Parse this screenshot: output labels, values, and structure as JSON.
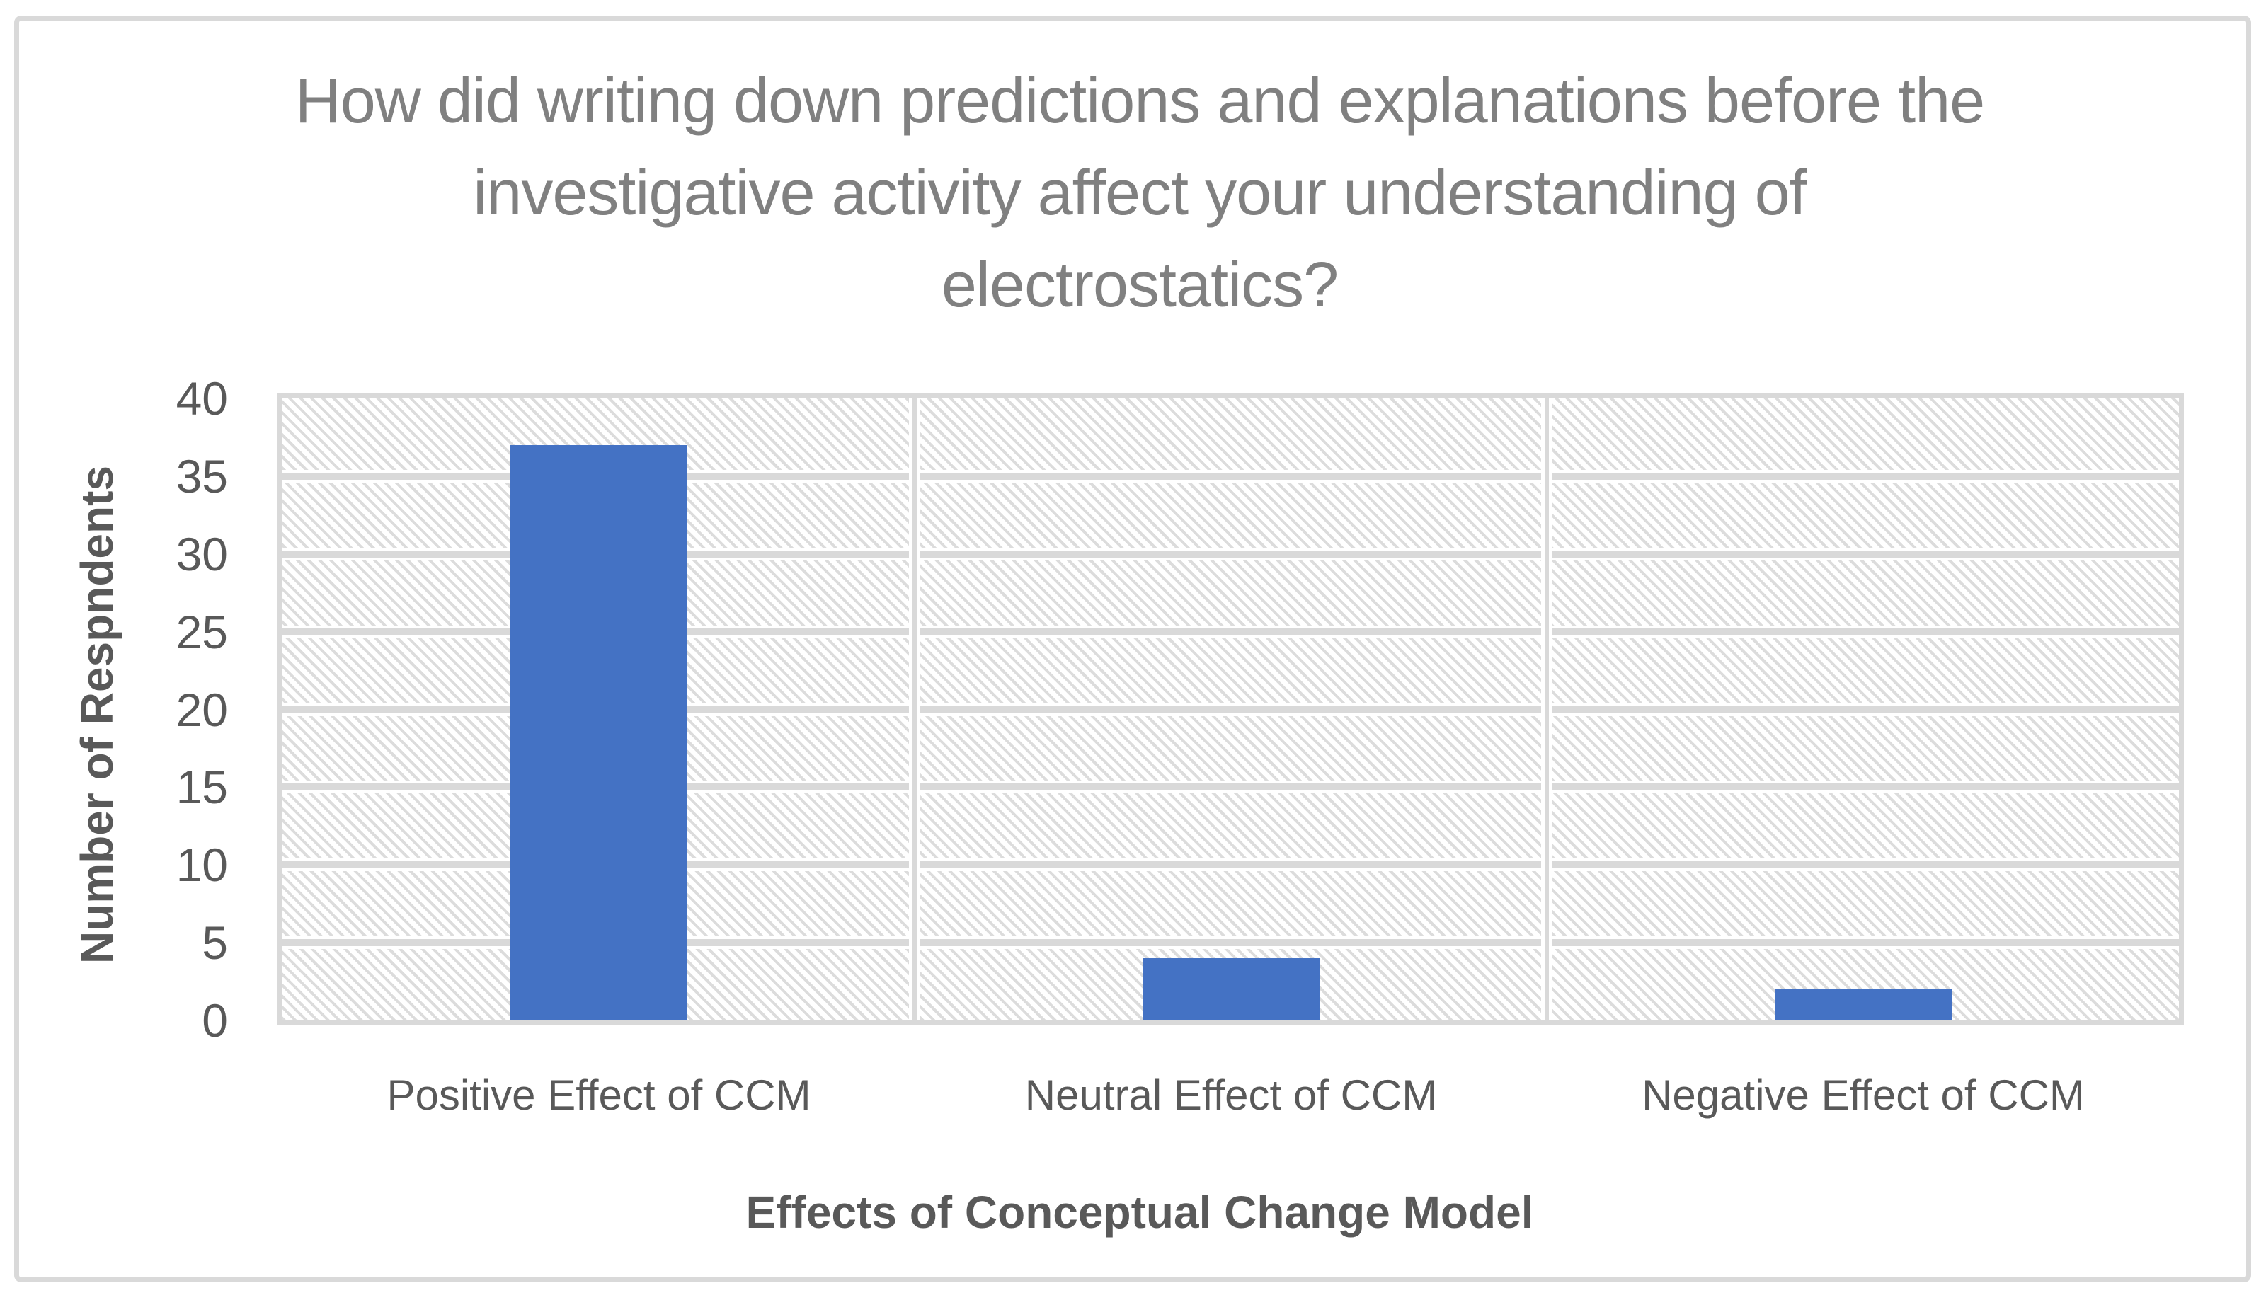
{
  "chart_data": {
    "type": "bar",
    "title": "How did writing down predictions and explanations before the investigative activity affect your understanding of electrostatics?",
    "title_lines": [
      "How did writing down predictions and explanations before the",
      "investigative activity affect your understanding of",
      "electrostatics?"
    ],
    "categories": [
      "Positive Effect of CCM",
      "Neutral Effect of CCM",
      "Negative Effect of CCM"
    ],
    "values": [
      37,
      4,
      2
    ],
    "xlabel": "Effects of Conceptual Change Model",
    "ylabel": "Number of Respndents",
    "ylim": [
      0,
      40
    ],
    "ytick_interval": 5,
    "yticks": [
      0,
      5,
      10,
      15,
      20,
      25,
      30,
      35,
      40
    ],
    "grid": "horizontal major gridlines + vertical category separators",
    "legend_position": "none",
    "plot_background": "light diagonal hatch pattern (downward diagonal)",
    "colors": {
      "bar": "#4472c4",
      "gridline": "#d9d9d9",
      "plot_border": "#d9d9d9",
      "chart_border": "#d9d9d9",
      "title_text": "#808080",
      "axis_text": "#595959",
      "hatch": "#dcdcdc",
      "background": "#ffffff"
    }
  }
}
